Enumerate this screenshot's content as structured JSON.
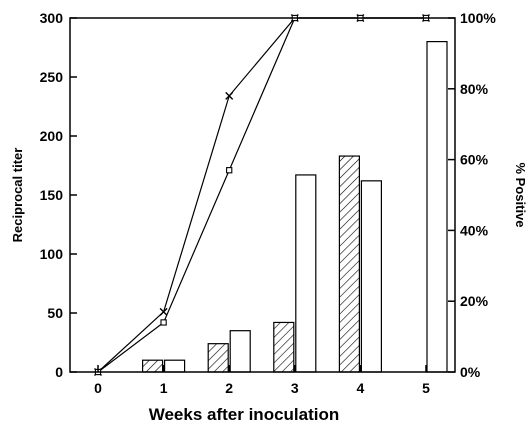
{
  "chart_data": {
    "type": "bar",
    "xlabel": "Weeks after inoculation",
    "ylabel_left": "Reciprocal titer",
    "ylabel_right": "% Positive",
    "x_ticks": [
      "0",
      "1",
      "2",
      "3",
      "4",
      "5"
    ],
    "left_axis": {
      "min": 0,
      "max": 300,
      "ticks": [
        "0",
        "50",
        "100",
        "150",
        "200",
        "250",
        "300"
      ]
    },
    "right_axis": {
      "min": 0,
      "max": 100,
      "ticks": [
        "0%",
        "20%",
        "40%",
        "60%",
        "80%",
        "100%"
      ]
    },
    "bar_series": [
      {
        "pattern": "hatched",
        "axis": "left",
        "values": [
          null,
          10,
          24,
          42,
          183,
          null
        ]
      },
      {
        "pattern": "open",
        "axis": "left",
        "values": [
          null,
          10,
          35,
          167,
          162,
          280
        ]
      }
    ],
    "line_series": [
      {
        "marker": "x",
        "axis": "right",
        "x": [
          0,
          1,
          2,
          3,
          4,
          5
        ],
        "y": [
          0,
          17,
          78,
          100,
          100,
          100
        ]
      },
      {
        "marker": "square",
        "axis": "right",
        "x": [
          0,
          1,
          2,
          3,
          4,
          5
        ],
        "y": [
          0,
          14,
          57,
          100,
          100,
          100
        ]
      }
    ],
    "grid": false,
    "legend": "none",
    "colors": {
      "ink": "#000000",
      "background": "#ffffff"
    }
  }
}
